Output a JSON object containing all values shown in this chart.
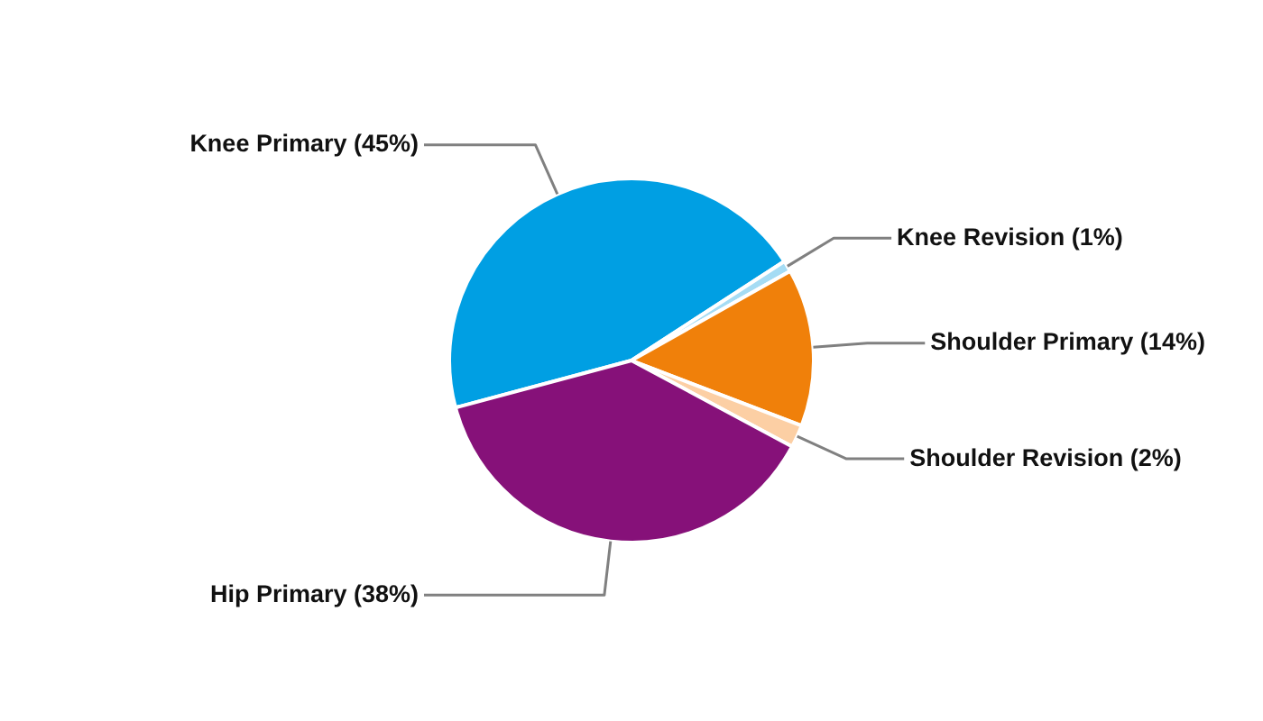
{
  "chart_data": {
    "type": "pie",
    "categories": [
      "Knee Primary",
      "Knee Revision",
      "Shoulder Primary",
      "Shoulder Revision",
      "Hip Primary"
    ],
    "values": [
      45,
      1,
      14,
      2,
      38
    ],
    "value_labels": [
      "(45%)",
      "(1%)",
      "(14%)",
      "(2%)",
      "(38%)"
    ],
    "colors": [
      "#009fe3",
      "#a5dcf4",
      "#f0800a",
      "#fccfa4",
      "#861179"
    ]
  }
}
